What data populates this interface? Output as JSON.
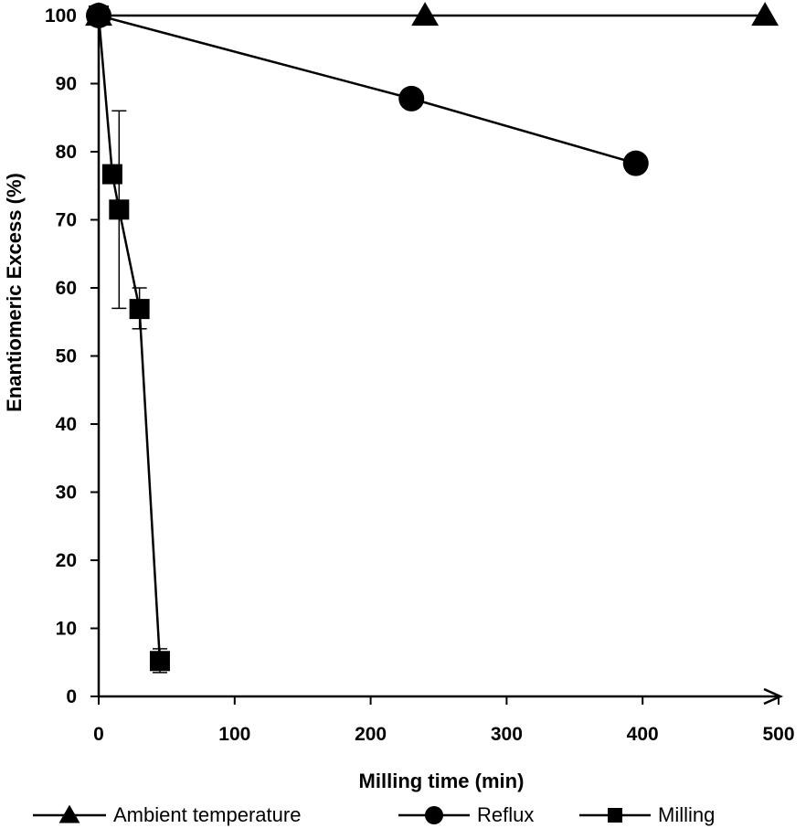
{
  "chart_data": {
    "type": "line",
    "xlabel": "Milling time (min)",
    "ylabel": "Enantiomeric Excess (%)",
    "xlim": [
      0,
      500
    ],
    "ylim": [
      0,
      100
    ],
    "x_ticks": [
      0,
      100,
      200,
      300,
      400,
      500
    ],
    "y_ticks": [
      0,
      10,
      20,
      30,
      40,
      50,
      60,
      70,
      80,
      90,
      100
    ],
    "grid": false,
    "legend_position": "bottom",
    "series": [
      {
        "name": "Ambient temperature",
        "marker": "triangle",
        "points": [
          {
            "x": 0,
            "y": 100
          },
          {
            "x": 240,
            "y": 100
          },
          {
            "x": 490,
            "y": 100
          }
        ]
      },
      {
        "name": "Reflux",
        "marker": "circle",
        "points": [
          {
            "x": 0,
            "y": 100
          },
          {
            "x": 230,
            "y": 87.8
          },
          {
            "x": 395,
            "y": 78.3
          }
        ]
      },
      {
        "name": "Milling",
        "marker": "square",
        "points": [
          {
            "x": 0,
            "y": 100
          },
          {
            "x": 10,
            "y": 76.7
          },
          {
            "x": 15,
            "y": 71.5,
            "err_low": 57,
            "err_high": 86
          },
          {
            "x": 30,
            "y": 56.9,
            "err_low": 54,
            "err_high": 60
          },
          {
            "x": 45,
            "y": 5.2,
            "err_low": 3.5,
            "err_high": 7
          }
        ]
      }
    ]
  }
}
